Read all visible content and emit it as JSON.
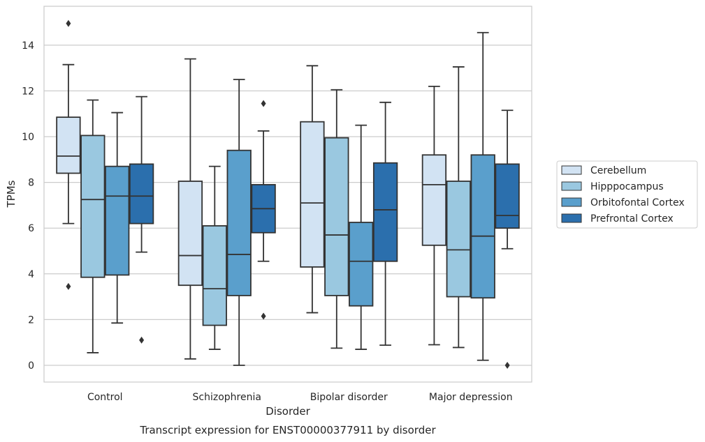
{
  "chart_data": {
    "type": "box",
    "xlabel": "Disorder",
    "ylabel": "TPMs",
    "caption": "Transcript expression for ENST00000377911 by disorder",
    "ylim": [
      -0.7,
      15.7
    ],
    "yticks": [
      0,
      2,
      4,
      6,
      8,
      10,
      12,
      14
    ],
    "grid": "horizontal",
    "legend_position": "right",
    "categories": [
      "Control",
      "Schizophrenia",
      "Bipolar disorder",
      "Major depression"
    ],
    "series": [
      {
        "name": "Cerebellum",
        "color": "#d2e3f3",
        "boxes": [
          {
            "whisker_low": 6.2,
            "q1": 8.4,
            "median": 9.15,
            "q3": 10.85,
            "whisker_high": 13.15,
            "outliers": [
              14.95,
              3.45
            ]
          },
          {
            "whisker_low": 0.28,
            "q1": 3.5,
            "median": 4.8,
            "q3": 8.05,
            "whisker_high": 13.4,
            "outliers": []
          },
          {
            "whisker_low": 2.3,
            "q1": 4.3,
            "median": 7.1,
            "q3": 10.65,
            "whisker_high": 13.1,
            "outliers": []
          },
          {
            "whisker_low": 0.9,
            "q1": 5.25,
            "median": 7.9,
            "q3": 9.2,
            "whisker_high": 12.2,
            "outliers": []
          }
        ]
      },
      {
        "name": "Hipppocampus",
        "color": "#9ac8e0",
        "boxes": [
          {
            "whisker_low": 0.55,
            "q1": 3.85,
            "median": 7.25,
            "q3": 10.05,
            "whisker_high": 11.6,
            "outliers": []
          },
          {
            "whisker_low": 0.7,
            "q1": 1.75,
            "median": 3.35,
            "q3": 6.1,
            "whisker_high": 8.7,
            "outliers": []
          },
          {
            "whisker_low": 0.75,
            "q1": 3.05,
            "median": 5.7,
            "q3": 9.95,
            "whisker_high": 12.05,
            "outliers": []
          },
          {
            "whisker_low": 0.78,
            "q1": 3.0,
            "median": 5.05,
            "q3": 8.05,
            "whisker_high": 13.05,
            "outliers": []
          }
        ]
      },
      {
        "name": "Orbitofontal Cortex",
        "color": "#5a9fcc",
        "boxes": [
          {
            "whisker_low": 1.85,
            "q1": 3.95,
            "median": 7.4,
            "q3": 8.7,
            "whisker_high": 11.05,
            "outliers": []
          },
          {
            "whisker_low": 0.0,
            "q1": 3.05,
            "median": 4.85,
            "q3": 9.4,
            "whisker_high": 12.5,
            "outliers": []
          },
          {
            "whisker_low": 0.7,
            "q1": 2.6,
            "median": 4.55,
            "q3": 6.25,
            "whisker_high": 10.5,
            "outliers": []
          },
          {
            "whisker_low": 0.22,
            "q1": 2.95,
            "median": 5.65,
            "q3": 9.2,
            "whisker_high": 14.55,
            "outliers": []
          }
        ]
      },
      {
        "name": "Prefrontal Cortex",
        "color": "#2b6fad",
        "boxes": [
          {
            "whisker_low": 4.95,
            "q1": 6.2,
            "median": 7.4,
            "q3": 8.8,
            "whisker_high": 11.75,
            "outliers": [
              1.1
            ]
          },
          {
            "whisker_low": 4.55,
            "q1": 5.8,
            "median": 6.85,
            "q3": 7.9,
            "whisker_high": 10.25,
            "outliers": [
              11.45,
              2.15
            ]
          },
          {
            "whisker_low": 0.88,
            "q1": 4.55,
            "median": 6.8,
            "q3": 8.85,
            "whisker_high": 11.5,
            "outliers": []
          },
          {
            "whisker_low": 5.1,
            "q1": 6.0,
            "median": 6.55,
            "q3": 8.8,
            "whisker_high": 11.15,
            "outliers": [
              0.0
            ]
          }
        ]
      }
    ]
  }
}
